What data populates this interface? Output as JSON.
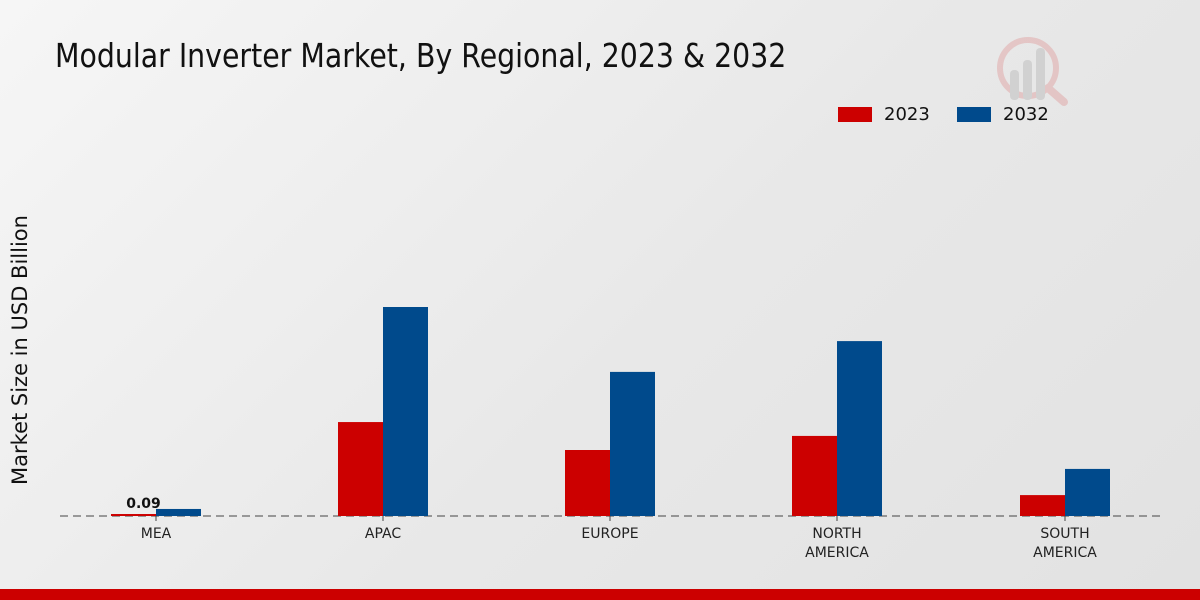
{
  "chart_data": {
    "type": "bar",
    "title": "Modular Inverter Market, By Regional, 2023 & 2032",
    "xlabel": "",
    "ylabel": "Market Size in USD Billion",
    "categories": [
      "MEA",
      "APAC",
      "EUROPE",
      "NORTH AMERICA",
      "SOUTH AMERICA"
    ],
    "series": [
      {
        "name": "2023",
        "color": "#cc0000",
        "values": [
          0.09,
          4.27,
          3.0,
          3.64,
          0.95
        ]
      },
      {
        "name": "2032",
        "color": "#004a8c",
        "values": [
          0.32,
          9.5,
          6.55,
          7.95,
          2.14
        ]
      }
    ],
    "data_labels": [
      {
        "series": "2023",
        "category": "MEA",
        "text": "0.09"
      }
    ],
    "ylim": [
      0,
      20
    ],
    "grid": false,
    "legend_position": "top-right"
  }
}
